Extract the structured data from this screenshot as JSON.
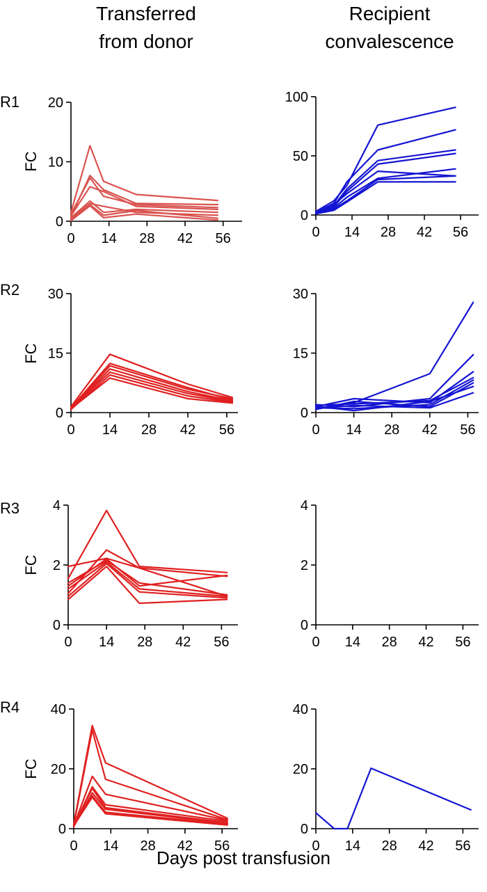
{
  "columns": {
    "left_title_line1": "Transferred",
    "left_title_line2": "from donor",
    "right_title_line1": "Recipient",
    "right_title_line2": "convalescence"
  },
  "xlabel": "Days post transfusion",
  "colors": {
    "left": "#e02020",
    "left_r1": "#d9534f",
    "right": "#1414d2"
  },
  "chart_data": [
    {
      "id": "R1-left",
      "row_label": "R1",
      "type": "line",
      "ylabel": "FC",
      "xlim": [
        0,
        63
      ],
      "xticks": [
        0,
        14,
        28,
        42,
        56
      ],
      "ylim": [
        0,
        20
      ],
      "yticks": [
        0,
        10,
        20
      ],
      "series": [
        {
          "x": [
            0,
            7,
            12,
            24,
            54
          ],
          "y": [
            1.5,
            12.7,
            6.7,
            4.5,
            3.5
          ]
        },
        {
          "x": [
            0,
            7,
            12,
            24,
            54
          ],
          "y": [
            0.8,
            7.7,
            5.3,
            3.0,
            2.8
          ]
        },
        {
          "x": [
            0,
            7,
            12,
            24,
            54
          ],
          "y": [
            1.2,
            7.3,
            4.2,
            2.8,
            2.3
          ]
        },
        {
          "x": [
            0,
            7,
            12,
            24,
            54
          ],
          "y": [
            0.9,
            5.8,
            5.0,
            2.5,
            2.0
          ]
        },
        {
          "x": [
            0,
            7,
            12,
            24,
            54
          ],
          "y": [
            0.6,
            3.4,
            1.5,
            2.0,
            1.5
          ]
        },
        {
          "x": [
            0,
            7,
            12,
            24,
            54
          ],
          "y": [
            0.4,
            3.0,
            2.5,
            1.5,
            1.0
          ]
        },
        {
          "x": [
            0,
            7,
            12,
            24,
            54
          ],
          "y": [
            0.2,
            2.8,
            1.0,
            1.8,
            0.5
          ]
        },
        {
          "x": [
            0,
            7,
            12,
            24,
            54
          ],
          "y": [
            0.1,
            2.6,
            0.6,
            1.2,
            0.2
          ]
        }
      ]
    },
    {
      "id": "R1-right",
      "row_label": "",
      "type": "line",
      "ylabel": "",
      "xlim": [
        0,
        63
      ],
      "xticks": [
        0,
        14,
        28,
        42,
        56
      ],
      "ylim": [
        0,
        100
      ],
      "yticks": [
        0,
        50,
        100
      ],
      "series": [
        {
          "x": [
            0,
            7,
            12,
            24,
            54
          ],
          "y": [
            3,
            12,
            25,
            76,
            91
          ]
        },
        {
          "x": [
            0,
            7,
            12,
            24,
            54
          ],
          "y": [
            2,
            10,
            28,
            55,
            72
          ]
        },
        {
          "x": [
            0,
            7,
            12,
            24,
            54
          ],
          "y": [
            2,
            8,
            22,
            46,
            55
          ]
        },
        {
          "x": [
            0,
            7,
            12,
            24,
            54
          ],
          "y": [
            1,
            7,
            20,
            43,
            52
          ]
        },
        {
          "x": [
            0,
            7,
            12,
            24,
            54
          ],
          "y": [
            3,
            9,
            18,
            37,
            33
          ]
        },
        {
          "x": [
            0,
            7,
            12,
            24,
            54
          ],
          "y": [
            2,
            6,
            15,
            31,
            39
          ]
        },
        {
          "x": [
            0,
            7,
            12,
            24,
            54
          ],
          "y": [
            1,
            5,
            12,
            30,
            33
          ]
        },
        {
          "x": [
            0,
            7,
            12,
            24,
            54
          ],
          "y": [
            1,
            4,
            11,
            28,
            28
          ]
        }
      ]
    },
    {
      "id": "R2-left",
      "row_label": "R2",
      "type": "line",
      "ylabel": "FC",
      "xlim": [
        0,
        60
      ],
      "xticks": [
        0,
        14,
        28,
        42,
        56
      ],
      "ylim": [
        0,
        30
      ],
      "yticks": [
        0,
        15,
        30
      ],
      "series": [
        {
          "x": [
            0,
            14,
            42,
            58
          ],
          "y": [
            1.5,
            14.7,
            7.2,
            3.8
          ]
        },
        {
          "x": [
            0,
            14,
            42,
            58
          ],
          "y": [
            1.2,
            12.4,
            6.3,
            3.2
          ]
        },
        {
          "x": [
            0,
            14,
            42,
            58
          ],
          "y": [
            1.0,
            11.8,
            5.9,
            3.5
          ]
        },
        {
          "x": [
            0,
            14,
            42,
            58
          ],
          "y": [
            0.9,
            11.0,
            5.3,
            3.0
          ]
        },
        {
          "x": [
            0,
            14,
            42,
            58
          ],
          "y": [
            1.1,
            10.2,
            4.8,
            2.8
          ]
        },
        {
          "x": [
            0,
            14,
            42,
            58
          ],
          "y": [
            0.8,
            9.5,
            4.2,
            2.6
          ]
        },
        {
          "x": [
            0,
            14,
            42,
            58
          ],
          "y": [
            1.0,
            8.7,
            3.5,
            2.4
          ]
        }
      ]
    },
    {
      "id": "R2-right",
      "row_label": "",
      "type": "line",
      "ylabel": "",
      "xlim": [
        0,
        60
      ],
      "xticks": [
        0,
        14,
        28,
        42,
        56
      ],
      "ylim": [
        0,
        30
      ],
      "yticks": [
        0,
        15,
        30
      ],
      "series": [
        {
          "x": [
            0,
            14,
            42,
            58
          ],
          "y": [
            1.0,
            2.5,
            9.8,
            27.8
          ]
        },
        {
          "x": [
            0,
            14,
            42,
            58
          ],
          "y": [
            2.0,
            1.5,
            3.5,
            14.6
          ]
        },
        {
          "x": [
            0,
            14,
            42,
            58
          ],
          "y": [
            1.5,
            3.5,
            2.5,
            10.3
          ]
        },
        {
          "x": [
            0,
            14,
            42,
            58
          ],
          "y": [
            1.8,
            2.2,
            3.0,
            8.8
          ]
        },
        {
          "x": [
            0,
            14,
            42,
            58
          ],
          "y": [
            1.2,
            1.0,
            2.0,
            8.2
          ]
        },
        {
          "x": [
            0,
            14,
            42,
            58
          ],
          "y": [
            0.8,
            2.8,
            1.5,
            7.5
          ]
        },
        {
          "x": [
            0,
            14,
            42,
            58
          ],
          "y": [
            1.6,
            0.5,
            2.8,
            6.6
          ]
        },
        {
          "x": [
            0,
            14,
            42,
            58
          ],
          "y": [
            1.0,
            1.8,
            1.2,
            5.0
          ]
        }
      ]
    },
    {
      "id": "R3-left",
      "row_label": "R3",
      "type": "line",
      "ylabel": "FC",
      "xlim": [
        0,
        62
      ],
      "xticks": [
        0,
        14,
        28,
        42,
        56
      ],
      "ylim": [
        0,
        4
      ],
      "yticks": [
        0,
        2,
        4
      ],
      "series": [
        {
          "x": [
            0,
            14,
            26,
            58
          ],
          "y": [
            1.55,
            3.82,
            1.95,
            1.75
          ]
        },
        {
          "x": [
            0,
            14,
            26,
            58
          ],
          "y": [
            1.95,
            2.22,
            1.9,
            0.95
          ]
        },
        {
          "x": [
            0,
            14,
            26,
            58
          ],
          "y": [
            1.05,
            2.5,
            1.9,
            1.62
          ]
        },
        {
          "x": [
            0,
            14,
            26,
            58
          ],
          "y": [
            1.3,
            2.2,
            1.3,
            1.65
          ]
        },
        {
          "x": [
            0,
            14,
            26,
            58
          ],
          "y": [
            1.4,
            2.15,
            1.4,
            1.0
          ]
        },
        {
          "x": [
            0,
            14,
            26,
            58
          ],
          "y": [
            1.2,
            2.1,
            1.2,
            0.95
          ]
        },
        {
          "x": [
            0,
            14,
            26,
            58
          ],
          "y": [
            0.95,
            2.05,
            1.1,
            0.9
          ]
        },
        {
          "x": [
            0,
            14,
            26,
            58
          ],
          "y": [
            0.85,
            1.95,
            0.72,
            0.85
          ]
        }
      ]
    },
    {
      "id": "R3-right",
      "row_label": "",
      "type": "line",
      "ylabel": "",
      "xlim": [
        0,
        62
      ],
      "xticks": [
        0,
        14,
        28,
        42,
        56
      ],
      "ylim": [
        0,
        4
      ],
      "yticks": [
        0,
        2,
        4
      ],
      "series": []
    },
    {
      "id": "R4-left",
      "row_label": "R4",
      "type": "line",
      "ylabel": "FC",
      "xlim": [
        0,
        62
      ],
      "xticks": [
        0,
        14,
        28,
        42,
        56
      ],
      "ylim": [
        0,
        40
      ],
      "yticks": [
        0,
        20,
        40
      ],
      "series": [
        {
          "x": [
            0,
            7,
            12,
            58
          ],
          "y": [
            1.5,
            34.5,
            22.0,
            3.5
          ]
        },
        {
          "x": [
            0,
            7,
            12,
            58
          ],
          "y": [
            1.2,
            33.0,
            16.5,
            3.0
          ]
        },
        {
          "x": [
            0,
            7,
            12,
            58
          ],
          "y": [
            1.0,
            17.5,
            11.5,
            2.8
          ]
        },
        {
          "x": [
            0,
            7,
            12,
            58
          ],
          "y": [
            0.8,
            14.0,
            8.0,
            2.5
          ]
        },
        {
          "x": [
            0,
            7,
            12,
            58
          ],
          "y": [
            1.1,
            13.5,
            7.0,
            2.0
          ]
        },
        {
          "x": [
            0,
            7,
            12,
            58
          ],
          "y": [
            0.7,
            12.0,
            6.5,
            1.8
          ]
        },
        {
          "x": [
            0,
            7,
            12,
            58
          ],
          "y": [
            0.9,
            11.0,
            5.5,
            1.5
          ]
        },
        {
          "x": [
            0,
            7,
            12,
            58
          ],
          "y": [
            1.0,
            10.5,
            5.0,
            1.2
          ]
        }
      ]
    },
    {
      "id": "R4-right",
      "row_label": "",
      "type": "line",
      "ylabel": "",
      "xlim": [
        0,
        62
      ],
      "xticks": [
        0,
        14,
        28,
        42,
        56
      ],
      "ylim": [
        0,
        40
      ],
      "yticks": [
        0,
        20,
        40
      ],
      "series": [
        {
          "x": [
            0,
            7,
            12,
            21,
            59
          ],
          "y": [
            5.3,
            0,
            0,
            20.2,
            6.3
          ]
        }
      ]
    }
  ]
}
